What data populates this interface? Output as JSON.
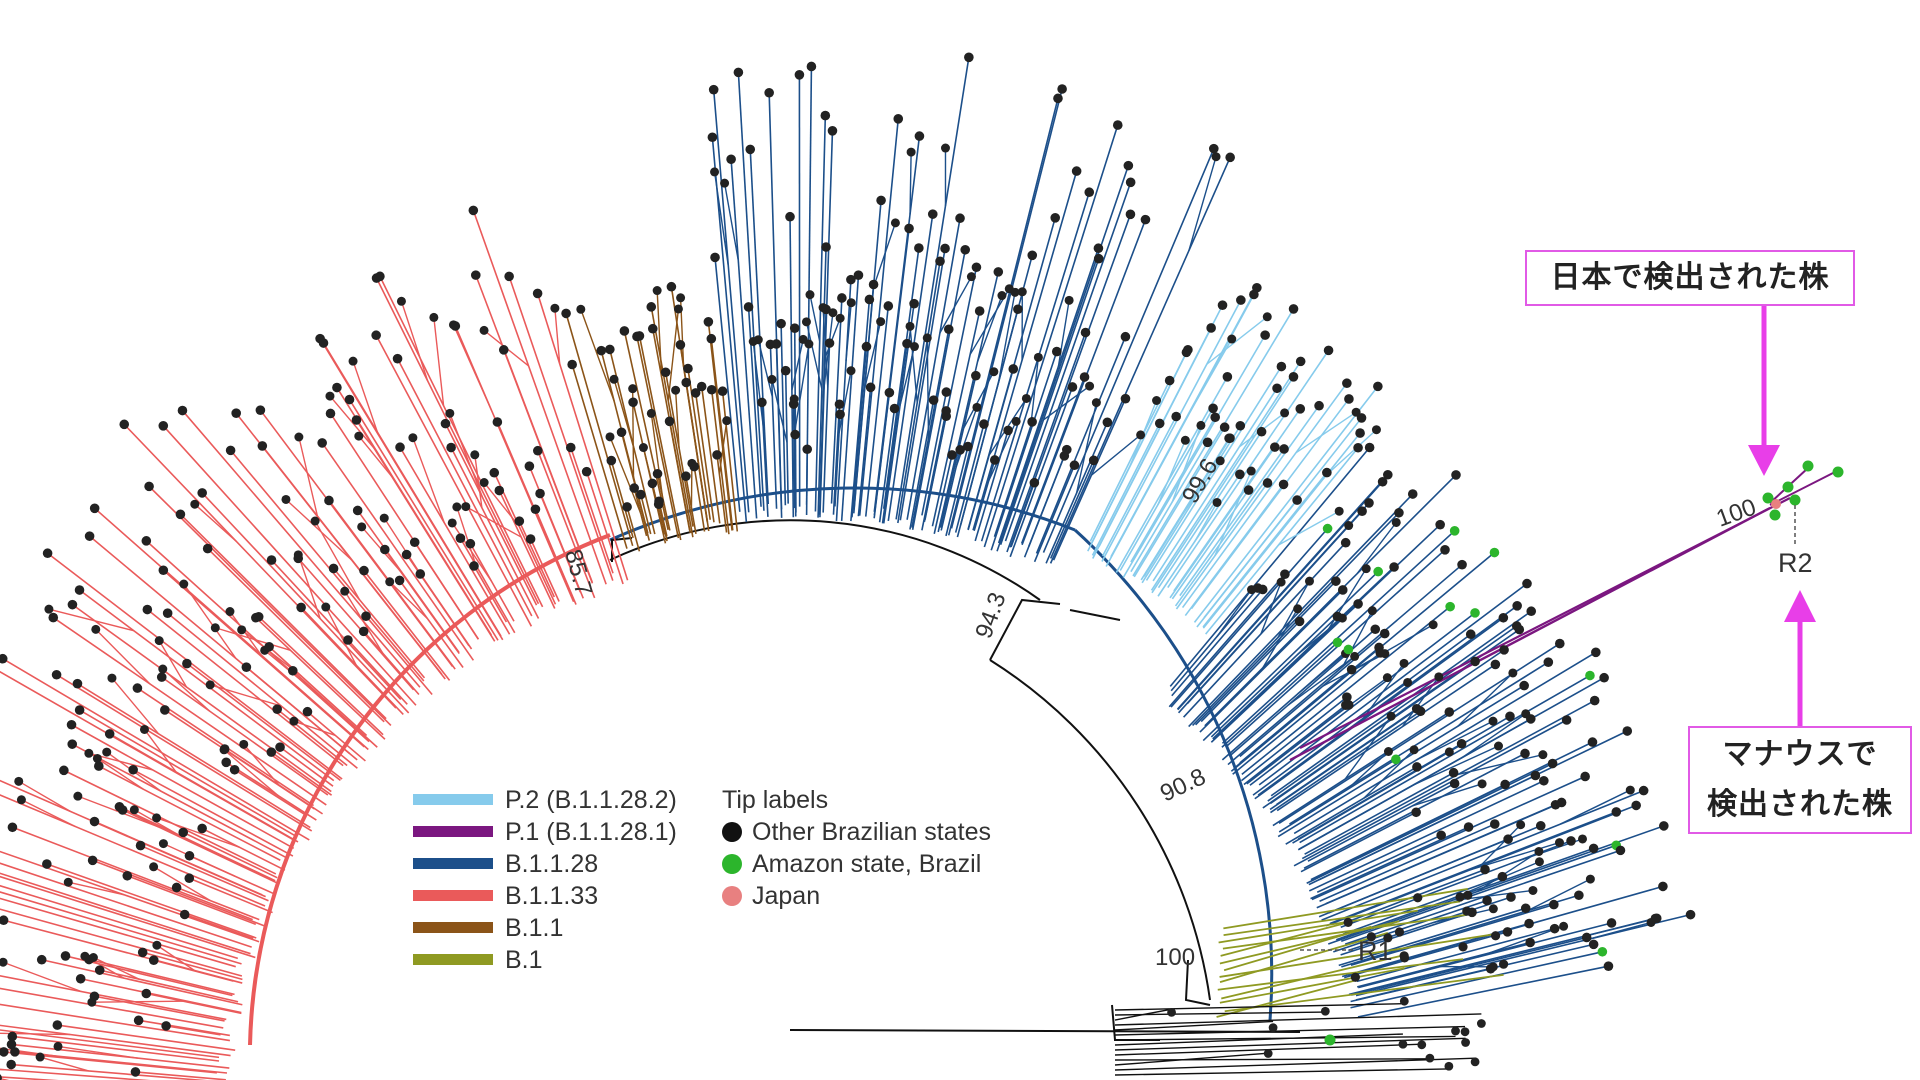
{
  "colors": {
    "P.2": "#86cbec",
    "P.1": "#7b1780",
    "B.1.1.28": "#1c4f8a",
    "B.1.1.33": "#ea5a5a",
    "B.1.1": "#8b5418",
    "B.1": "#8f9a22",
    "other_states": "#111111",
    "amazon": "#2cb52c",
    "japan": "#e88080",
    "callout": "#e83ee8"
  },
  "legend": {
    "lineages": [
      {
        "label": "P.2 (B.1.1.28.2)",
        "color": "#86cbec"
      },
      {
        "label": "P.1 (B.1.1.28.1)",
        "color": "#7b1780"
      },
      {
        "label": "B.1.1.28",
        "color": "#1c4f8a"
      },
      {
        "label": "B.1.1.33",
        "color": "#ea5a5a"
      },
      {
        "label": "B.1.1",
        "color": "#8b5418"
      },
      {
        "label": "B.1",
        "color": "#8f9a22"
      }
    ],
    "tip_title": "Tip labels",
    "tips": [
      {
        "label": "Other Brazilian states",
        "color": "#111111"
      },
      {
        "label": "Amazon state, Brazil",
        "color": "#2cb52c"
      },
      {
        "label": "Japan",
        "color": "#e88080"
      }
    ]
  },
  "support_values": {
    "b1133": "85.7",
    "b1128": "94.3",
    "p2": "99.6",
    "lower": "90.8",
    "b1": "100",
    "p1": "100"
  },
  "region_labels": {
    "r1": "R1",
    "r2": "R2"
  },
  "callouts": {
    "japan": "日本で検出された株",
    "manaus_line1": "マナウスで",
    "manaus_line2": "検出された株"
  },
  "icons": {
    "arrow_down": "arrow-down-icon",
    "arrow_up": "arrow-up-icon"
  }
}
